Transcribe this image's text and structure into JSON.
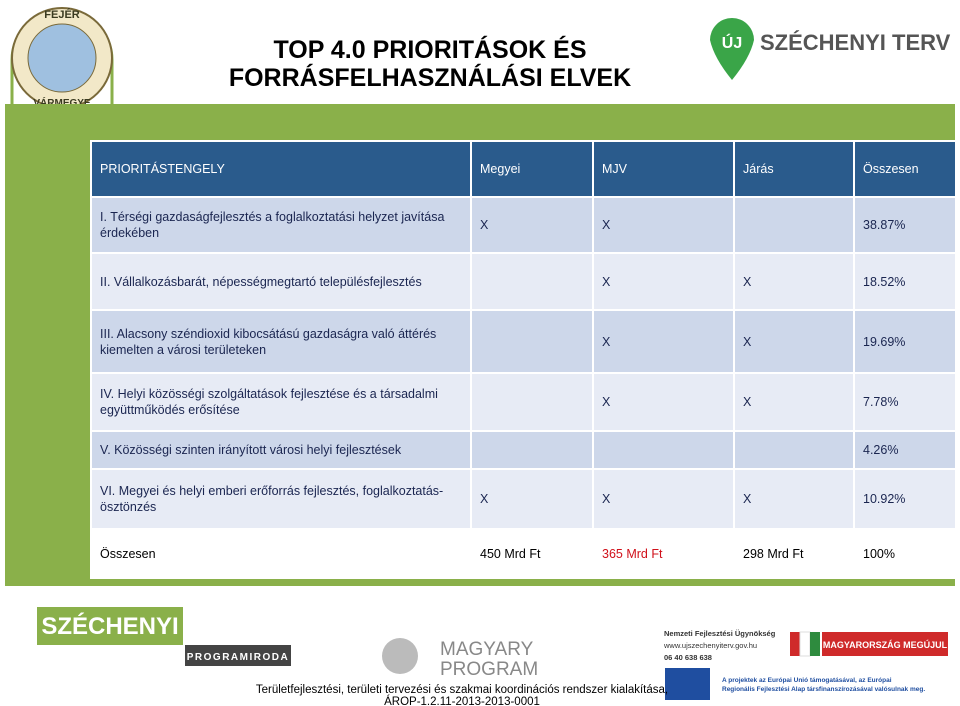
{
  "header": {
    "title": [
      "TOP 4.0 PRIORITÁSOK ÉS",
      "FORRÁSFELHASZNÁLÁSI ELVEK"
    ],
    "crest": [
      "FEJÉR",
      "VÁRMEGYE"
    ],
    "logo": {
      "badge": "ÚJ",
      "name": "SZÉCHENYI TERV"
    }
  },
  "table": {
    "header": [
      "PRIORITÁSTENGELY",
      "Megyei",
      "MJV",
      "Járás",
      "Összesen"
    ],
    "rows": [
      [
        "I. Térségi gazdaságfejlesztés a foglalkoztatási helyzet javítása érdekében",
        "X",
        "X",
        null,
        "38.87%"
      ],
      [
        "II. Vállalkozásbarát, népességmegtartó településfejlesztés",
        null,
        "X",
        "X",
        "18.52%"
      ],
      [
        "III. Alacsony széndioxid kibocsátású gazdaságra való áttérés kiemelten a városi területeken",
        null,
        "X",
        "X",
        "19.69%"
      ],
      [
        "IV. Helyi közösségi szolgáltatások fejlesztése és a társadalmi együttműködés erősítése",
        null,
        "X",
        "X",
        "7.78%"
      ],
      [
        "V. Közösségi szinten irányított városi helyi fejlesztések",
        null,
        null,
        null,
        "4.26%"
      ],
      [
        "VI. Megyei és helyi emberi erőforrás fejlesztés, foglalkoztatás-ösztönzés",
        "X",
        "X",
        "X",
        "10.92%"
      ],
      [
        "Összesen",
        "450 Mrd Ft",
        "365 Mrd Ft",
        "298 Mrd Ft",
        "100%"
      ]
    ]
  },
  "footer": {
    "szechenyi": "SZÉCHENYI",
    "programiroda": "PROGRAMIRODA",
    "magyary": [
      "MAGYARY",
      "PROGRAM"
    ],
    "nfu": [
      "Nemzeti Fejlesztési Ügynökség",
      "www.ujszechenyiterv.gov.hu",
      "06 40 638 638"
    ],
    "megujul": "MAGYARORSZÁG MEGÚJUL",
    "eu": [
      "A projektek az Európai Unió támogatásával, az Európai",
      "Regionális Fejlesztési Alap társfinanszírozásával valósulnak meg."
    ],
    "text": [
      "Területfejlesztési, területi tervezési és szakmai koordinációs rendszer kialakítása,",
      "ÁROP-1.2.11-2013-2013-0001"
    ]
  }
}
